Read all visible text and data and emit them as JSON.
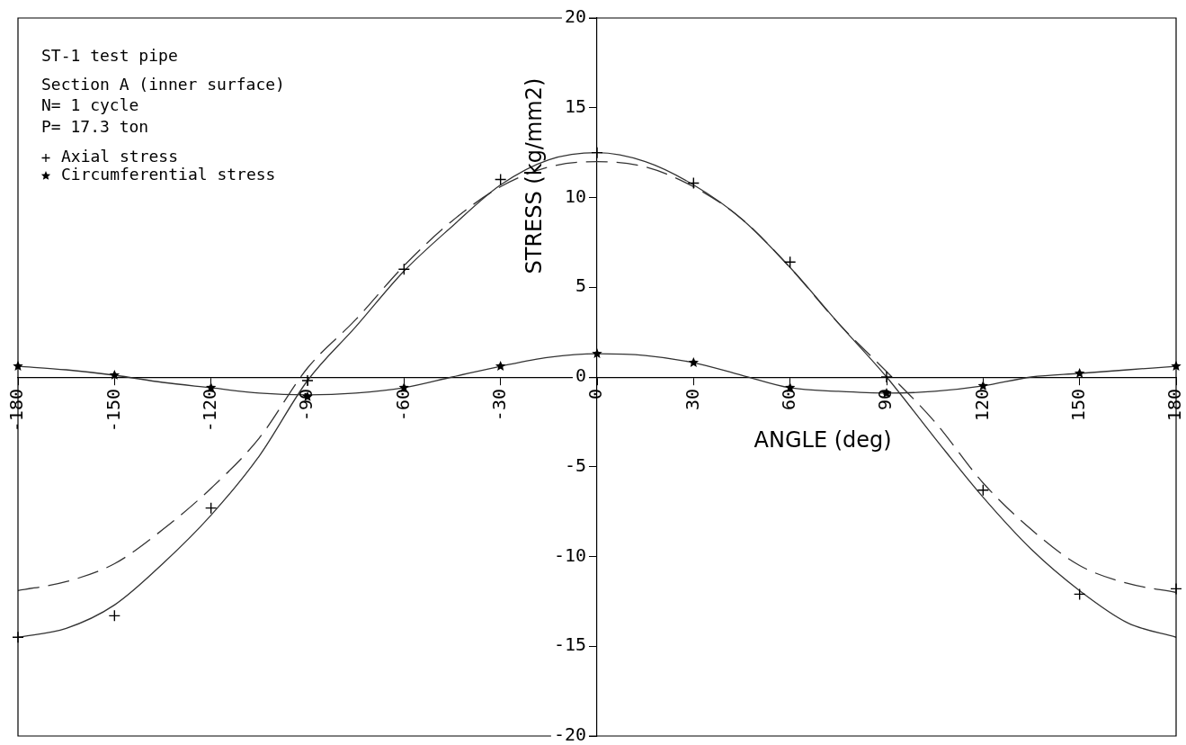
{
  "chart_data": {
    "type": "line",
    "title": "ST-1 test pipe",
    "annotations": [
      "Section A (inner surface)",
      "N= 1 cycle",
      "P= 17.3 ton"
    ],
    "xlabel": "ANGLE (deg)",
    "ylabel": "STRESS (kg/mm2)",
    "x": [
      -180,
      -150,
      -120,
      -90,
      -60,
      -30,
      0,
      30,
      60,
      90,
      120,
      150,
      180
    ],
    "series": [
      {
        "name": "Axial stress",
        "type": "scatter",
        "marker": "cross",
        "color": "#000000",
        "values": [
          -14.5,
          -13.3,
          -7.3,
          -0.2,
          6.0,
          11.0,
          12.5,
          10.8,
          6.4,
          0.0,
          -6.3,
          -12.1,
          -11.8
        ]
      },
      {
        "name": "Circumferential stress",
        "type": "scatter",
        "marker": "star",
        "color": "#000000",
        "values": [
          0.6,
          0.1,
          -0.6,
          -1.1,
          -0.6,
          0.6,
          1.3,
          0.8,
          -0.6,
          -0.9,
          -0.5,
          0.2,
          0.6
        ]
      },
      {
        "type": "line",
        "color": "#333333",
        "x": [
          -180,
          -165,
          -150,
          -135,
          -120,
          -105,
          -90,
          -75,
          -60,
          -45,
          -30,
          -15,
          0,
          15,
          30,
          45,
          60,
          75,
          90,
          105,
          120,
          135,
          150,
          165,
          180
        ],
        "values": [
          -14.5,
          -14.0,
          -12.7,
          -10.4,
          -7.7,
          -4.4,
          -0.2,
          2.8,
          5.9,
          8.4,
          10.7,
          12.1,
          12.5,
          12.0,
          10.7,
          8.8,
          6.1,
          3.0,
          0.0,
          -3.4,
          -6.7,
          -9.6,
          -11.9,
          -13.7,
          -14.5
        ]
      },
      {
        "type": "line",
        "color": "#333333",
        "line_style": "dashed",
        "x": [
          -180,
          -165,
          -150,
          -135,
          -120,
          -105,
          -90,
          -75,
          -60,
          -45,
          -30,
          -15,
          0,
          15,
          30,
          45,
          60,
          75,
          90,
          105,
          120,
          135,
          150,
          165,
          180
        ],
        "values": [
          -11.9,
          -11.4,
          -10.4,
          -8.5,
          -6.2,
          -3.4,
          0.5,
          3.2,
          6.2,
          8.7,
          10.6,
          11.7,
          12.0,
          11.7,
          10.6,
          8.8,
          6.1,
          3.0,
          0.3,
          -2.5,
          -5.9,
          -8.5,
          -10.5,
          -11.5,
          -12.0
        ]
      },
      {
        "type": "line",
        "color": "#333333",
        "x": [
          -180,
          -165,
          -150,
          -135,
          -120,
          -105,
          -90,
          -75,
          -60,
          -45,
          -30,
          -15,
          0,
          15,
          30,
          45,
          60,
          75,
          90,
          105,
          120,
          135,
          150,
          165,
          180
        ],
        "values": [
          0.6,
          0.4,
          0.1,
          -0.3,
          -0.6,
          -0.9,
          -1.0,
          -0.9,
          -0.6,
          0.0,
          0.6,
          1.1,
          1.3,
          1.2,
          0.8,
          0.1,
          -0.6,
          -0.8,
          -0.9,
          -0.8,
          -0.5,
          0.0,
          0.2,
          0.4,
          0.6
        ]
      }
    ],
    "xlim": [
      -180,
      180
    ],
    "xticks": [
      -180,
      -150,
      -120,
      -90,
      -60,
      -30,
      0,
      30,
      60,
      90,
      120,
      150,
      180
    ],
    "ylim": [
      -20,
      20
    ],
    "yticks": [
      -20,
      -15,
      -10,
      -5,
      0,
      5,
      10,
      15,
      20
    ],
    "grid": false,
    "legend": "top left"
  }
}
